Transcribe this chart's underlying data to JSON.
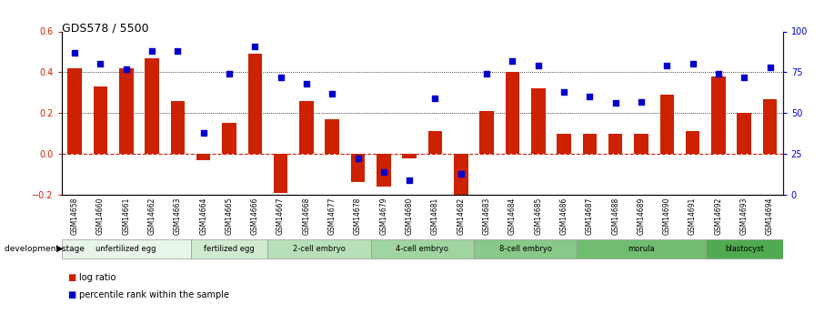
{
  "title": "GDS578 / 5500",
  "samples": [
    "GSM14658",
    "GSM14660",
    "GSM14661",
    "GSM14662",
    "GSM14663",
    "GSM14664",
    "GSM14665",
    "GSM14666",
    "GSM14667",
    "GSM14668",
    "GSM14677",
    "GSM14678",
    "GSM14679",
    "GSM14680",
    "GSM14681",
    "GSM14682",
    "GSM14683",
    "GSM14684",
    "GSM14685",
    "GSM14686",
    "GSM14687",
    "GSM14688",
    "GSM14689",
    "GSM14690",
    "GSM14691",
    "GSM14692",
    "GSM14693",
    "GSM14694"
  ],
  "log_ratio": [
    0.42,
    0.33,
    0.42,
    0.47,
    0.26,
    -0.03,
    0.15,
    0.49,
    -0.19,
    0.26,
    0.17,
    -0.14,
    -0.16,
    -0.02,
    0.11,
    -0.22,
    0.21,
    0.4,
    0.32,
    0.1,
    0.1,
    0.1,
    0.1,
    0.29,
    0.11,
    0.38,
    0.2,
    0.27
  ],
  "percentile_rank": [
    87,
    80,
    77,
    88,
    88,
    38,
    74,
    91,
    72,
    68,
    62,
    22,
    14,
    9,
    59,
    13,
    74,
    82,
    79,
    63,
    60,
    56,
    57,
    79,
    80,
    74,
    72,
    78
  ],
  "stages": [
    {
      "label": "unfertilized egg",
      "start": 0,
      "end": 5,
      "color": "#e8f5e9"
    },
    {
      "label": "fertilized egg",
      "start": 5,
      "end": 8,
      "color": "#d0ead0"
    },
    {
      "label": "2-cell embryo",
      "start": 8,
      "end": 12,
      "color": "#b8e0b8"
    },
    {
      "label": "4-cell embryo",
      "start": 12,
      "end": 16,
      "color": "#a0d4a0"
    },
    {
      "label": "8-cell embryo",
      "start": 16,
      "end": 20,
      "color": "#88c888"
    },
    {
      "label": "morula",
      "start": 20,
      "end": 25,
      "color": "#70bc70"
    },
    {
      "label": "blastocyst",
      "start": 25,
      "end": 28,
      "color": "#50aa50"
    }
  ],
  "bar_color": "#cc2200",
  "dot_color": "#0000cc",
  "ylim_left": [
    -0.2,
    0.6
  ],
  "ylim_right": [
    0,
    100
  ],
  "yticks_left": [
    -0.2,
    0.0,
    0.2,
    0.4,
    0.6
  ],
  "yticks_right": [
    0,
    25,
    50,
    75,
    100
  ],
  "hlines_dotted": [
    0.2,
    0.4
  ],
  "zero_line_color": "#cc2200",
  "background_color": "#ffffff"
}
